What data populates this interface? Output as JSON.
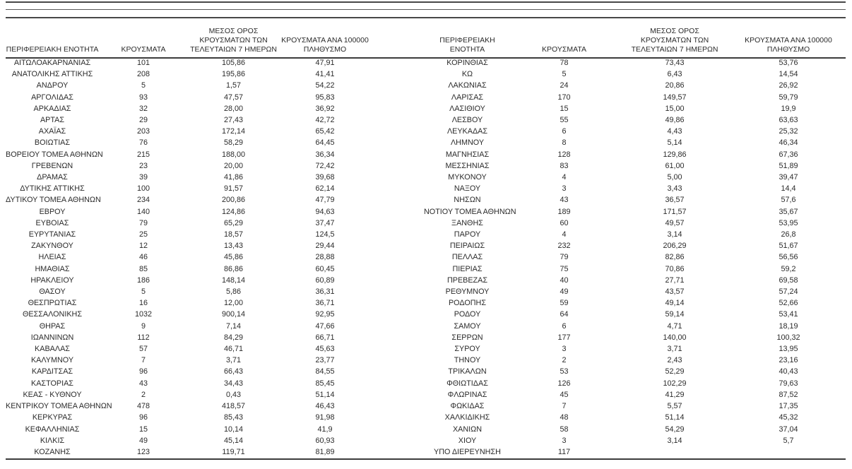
{
  "table": {
    "column_headers": [
      "ΠΕΡΙΦΕΡΕΙΑΚΗ ΕΝΟΤΗΤΑ",
      "ΚΡΟΥΣΜΑΤΑ",
      "ΜΕΣΟΣ ΟΡΟΣ\nΚΡΟΥΣΜΑΤΩΝ ΤΩΝ\nΤΕΛΕΥΤΑΙΩΝ 7 ΗΜΕΡΩΝ",
      "ΚΡΟΥΣΜΑΤΑ ΑΝΑ 100000\nΠΛΗΘΥΣΜΟ"
    ],
    "left_rows": [
      [
        "ΑΙΤΩΛΟΑΚΑΡΝΑΝΙΑΣ",
        "101",
        "105,86",
        "47,91"
      ],
      [
        "ΑΝΑΤΟΛΙΚΗΣ ΑΤΤΙΚΗΣ",
        "208",
        "195,86",
        "41,41"
      ],
      [
        "ΑΝΔΡΟΥ",
        "5",
        "1,57",
        "54,22"
      ],
      [
        "ΑΡΓΟΛΙΔΑΣ",
        "93",
        "47,57",
        "95,83"
      ],
      [
        "ΑΡΚΑΔΙΑΣ",
        "32",
        "28,00",
        "36,92"
      ],
      [
        "ΑΡΤΑΣ",
        "29",
        "27,43",
        "42,72"
      ],
      [
        "ΑΧΑΪΑΣ",
        "203",
        "172,14",
        "65,42"
      ],
      [
        "ΒΟΙΩΤΙΑΣ",
        "76",
        "58,29",
        "64,45"
      ],
      [
        "ΒΟΡΕΙΟΥ ΤΟΜΕΑ ΑΘΗΝΩΝ",
        "215",
        "188,00",
        "36,34"
      ],
      [
        "ΓΡΕΒΕΝΩΝ",
        "23",
        "20,00",
        "72,42"
      ],
      [
        "ΔΡΑΜΑΣ",
        "39",
        "41,86",
        "39,68"
      ],
      [
        "ΔΥΤΙΚΗΣ ΑΤΤΙΚΗΣ",
        "100",
        "91,57",
        "62,14"
      ],
      [
        "ΔΥΤΙΚΟΥ ΤΟΜΕΑ ΑΘΗΝΩΝ",
        "234",
        "200,86",
        "47,79"
      ],
      [
        "ΕΒΡΟΥ",
        "140",
        "124,86",
        "94,63"
      ],
      [
        "ΕΥΒΟΙΑΣ",
        "79",
        "65,29",
        "37,47"
      ],
      [
        "ΕΥΡΥΤΑΝΙΑΣ",
        "25",
        "18,57",
        "124,5"
      ],
      [
        "ΖΑΚΥΝΘΟΥ",
        "12",
        "13,43",
        "29,44"
      ],
      [
        "ΗΛΕΙΑΣ",
        "46",
        "45,86",
        "28,88"
      ],
      [
        "ΗΜΑΘΙΑΣ",
        "85",
        "86,86",
        "60,45"
      ],
      [
        "ΗΡΑΚΛΕΙΟΥ",
        "186",
        "148,14",
        "60,89"
      ],
      [
        "ΘΑΣΟΥ",
        "5",
        "5,86",
        "36,31"
      ],
      [
        "ΘΕΣΠΡΩΤΙΑΣ",
        "16",
        "12,00",
        "36,71"
      ],
      [
        "ΘΕΣΣΑΛΟΝΙΚΗΣ",
        "1032",
        "900,14",
        "92,95"
      ],
      [
        "ΘΗΡΑΣ",
        "9",
        "7,14",
        "47,66"
      ],
      [
        "ΙΩΑΝΝΙΝΩΝ",
        "112",
        "84,29",
        "66,71"
      ],
      [
        "ΚΑΒΑΛΑΣ",
        "57",
        "46,71",
        "45,63"
      ],
      [
        "ΚΑΛΥΜΝΟΥ",
        "7",
        "3,71",
        "23,77"
      ],
      [
        "ΚΑΡΔΙΤΣΑΣ",
        "96",
        "66,43",
        "84,55"
      ],
      [
        "ΚΑΣΤΟΡΙΑΣ",
        "43",
        "34,43",
        "85,45"
      ],
      [
        "ΚΕΑΣ - ΚΥΘΝΟΥ",
        "2",
        "0,43",
        "51,14"
      ],
      [
        "ΚΕΝΤΡΙΚΟΥ ΤΟΜΕΑ ΑΘΗΝΩΝ",
        "478",
        "418,57",
        "46,43"
      ],
      [
        "ΚΕΡΚΥΡΑΣ",
        "96",
        "85,43",
        "91,98"
      ],
      [
        "ΚΕΦΑΛΛΗΝΙΑΣ",
        "15",
        "10,14",
        "41,9"
      ],
      [
        "ΚΙΛΚΙΣ",
        "49",
        "45,14",
        "60,93"
      ],
      [
        "ΚΟΖΑΝΗΣ",
        "123",
        "119,71",
        "81,89"
      ]
    ],
    "right_rows": [
      [
        "ΚΟΡΙΝΘΙΑΣ",
        "78",
        "73,43",
        "53,76"
      ],
      [
        "ΚΩ",
        "5",
        "6,43",
        "14,54"
      ],
      [
        "ΛΑΚΩΝΙΑΣ",
        "24",
        "20,86",
        "26,92"
      ],
      [
        "ΛΑΡΙΣΑΣ",
        "170",
        "149,57",
        "59,79"
      ],
      [
        "ΛΑΣΙΘΙΟΥ",
        "15",
        "15,00",
        "19,9"
      ],
      [
        "ΛΕΣΒΟΥ",
        "55",
        "49,86",
        "63,63"
      ],
      [
        "ΛΕΥΚΑΔΑΣ",
        "6",
        "4,43",
        "25,32"
      ],
      [
        "ΛΗΜΝΟΥ",
        "8",
        "5,14",
        "46,34"
      ],
      [
        "ΜΑΓΝΗΣΙΑΣ",
        "128",
        "129,86",
        "67,36"
      ],
      [
        "ΜΕΣΣΗΝΙΑΣ",
        "83",
        "61,00",
        "51,89"
      ],
      [
        "ΜΥΚΟΝΟΥ",
        "4",
        "5,00",
        "39,47"
      ],
      [
        "ΝΑΞΟΥ",
        "3",
        "3,43",
        "14,4"
      ],
      [
        "ΝΗΣΩΝ",
        "43",
        "36,57",
        "57,6"
      ],
      [
        "ΝΟΤΙΟΥ ΤΟΜΕΑ ΑΘΗΝΩΝ",
        "189",
        "171,57",
        "35,67"
      ],
      [
        "ΞΑΝΘΗΣ",
        "60",
        "49,57",
        "53,95"
      ],
      [
        "ΠΑΡΟΥ",
        "4",
        "3,14",
        "26,8"
      ],
      [
        "ΠΕΙΡΑΙΩΣ",
        "232",
        "206,29",
        "51,67"
      ],
      [
        "ΠΕΛΛΑΣ",
        "79",
        "82,86",
        "56,56"
      ],
      [
        "ΠΙΕΡΙΑΣ",
        "75",
        "70,86",
        "59,2"
      ],
      [
        "ΠΡΕΒΕΖΑΣ",
        "40",
        "27,71",
        "69,58"
      ],
      [
        "ΡΕΘΥΜΝΟΥ",
        "49",
        "43,57",
        "57,24"
      ],
      [
        "ΡΟΔΟΠΗΣ",
        "59",
        "49,14",
        "52,66"
      ],
      [
        "ΡΟΔΟΥ",
        "64",
        "59,14",
        "53,41"
      ],
      [
        "ΣΑΜΟΥ",
        "6",
        "4,71",
        "18,19"
      ],
      [
        "ΣΕΡΡΩΝ",
        "177",
        "140,00",
        "100,32"
      ],
      [
        "ΣΥΡΟΥ",
        "3",
        "3,71",
        "13,95"
      ],
      [
        "ΤΗΝΟΥ",
        "2",
        "2,43",
        "23,16"
      ],
      [
        "ΤΡΙΚΑΛΩΝ",
        "53",
        "52,29",
        "40,43"
      ],
      [
        "ΦΘΙΩΤΙΔΑΣ",
        "126",
        "102,29",
        "79,63"
      ],
      [
        "ΦΛΩΡΙΝΑΣ",
        "45",
        "41,29",
        "87,52"
      ],
      [
        "ΦΩΚΙΔΑΣ",
        "7",
        "5,57",
        "17,35"
      ],
      [
        "ΧΑΛΚΙΔΙΚΗΣ",
        "48",
        "51,14",
        "45,32"
      ],
      [
        "ΧΑΝΙΩΝ",
        "58",
        "54,29",
        "37,04"
      ],
      [
        "ΧΙΟΥ",
        "3",
        "3,14",
        "5,7"
      ],
      [
        "ΥΠΟ ΔΙΕΡΕΥΝΗΣΗ",
        "117",
        "",
        ""
      ]
    ],
    "rule_color": "#3c3c3c",
    "text_color": "#2b2b2b"
  }
}
